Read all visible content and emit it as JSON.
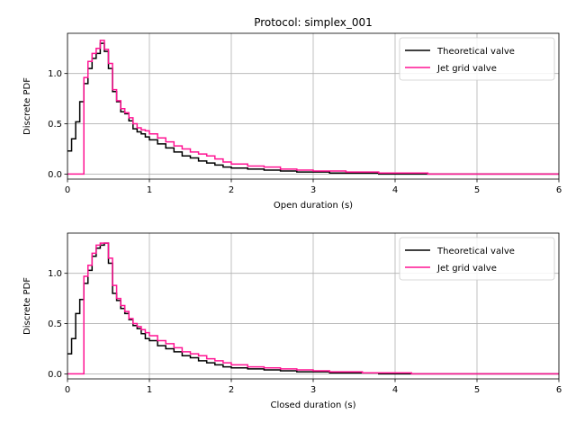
{
  "chart_data": [
    {
      "type": "line",
      "title": "Protocol: simplex_001",
      "xlabel": "Open duration (s)",
      "ylabel": "Discrete PDF",
      "xlim": [
        0,
        6
      ],
      "ylim": [
        -0.05,
        1.4
      ],
      "xticks": [
        0,
        1,
        2,
        3,
        4,
        5,
        6
      ],
      "yticks": [
        0.0,
        0.5,
        1.0
      ],
      "xtick_labels": [
        "0",
        "1",
        "2",
        "3",
        "4",
        "5",
        "6"
      ],
      "ytick_labels": [
        "0.0",
        "0.5",
        "1.0"
      ],
      "grid": true,
      "legend": "top-right",
      "x": [
        0,
        0.05,
        0.1,
        0.15,
        0.2,
        0.25,
        0.3,
        0.35,
        0.4,
        0.45,
        0.5,
        0.55,
        0.6,
        0.65,
        0.7,
        0.75,
        0.8,
        0.85,
        0.9,
        0.95,
        1.0,
        1.1,
        1.2,
        1.3,
        1.4,
        1.5,
        1.6,
        1.7,
        1.8,
        1.9,
        2.0,
        2.2,
        2.4,
        2.6,
        2.8,
        3.0,
        3.2,
        3.4,
        3.6,
        3.8,
        4.0,
        4.2,
        4.4,
        4.6,
        6.0
      ],
      "series": [
        {
          "name": "Theoretical valve",
          "color": "#000000",
          "values": [
            0.23,
            0.35,
            0.52,
            0.72,
            0.9,
            1.05,
            1.15,
            1.2,
            1.3,
            1.22,
            1.05,
            0.82,
            0.72,
            0.62,
            0.6,
            0.53,
            0.45,
            0.42,
            0.4,
            0.37,
            0.34,
            0.3,
            0.26,
            0.22,
            0.18,
            0.16,
            0.13,
            0.11,
            0.09,
            0.07,
            0.06,
            0.05,
            0.04,
            0.03,
            0.02,
            0.02,
            0.01,
            0.01,
            0.01,
            0.0,
            0.0,
            0.0,
            0.0,
            0.0,
            0.0
          ]
        },
        {
          "name": "Jet grid valve",
          "color": "#ff1493",
          "values": [
            0.0,
            0.0,
            0.0,
            0.0,
            0.96,
            1.12,
            1.2,
            1.25,
            1.33,
            1.24,
            1.1,
            0.84,
            0.73,
            0.65,
            0.61,
            0.56,
            0.5,
            0.46,
            0.44,
            0.43,
            0.4,
            0.36,
            0.32,
            0.28,
            0.25,
            0.22,
            0.2,
            0.18,
            0.15,
            0.12,
            0.1,
            0.08,
            0.07,
            0.05,
            0.04,
            0.03,
            0.03,
            0.02,
            0.02,
            0.01,
            0.01,
            0.01,
            0.0,
            0.0,
            0.0
          ]
        }
      ]
    },
    {
      "type": "line",
      "title": "",
      "xlabel": "Closed duration (s)",
      "ylabel": "Discrete PDF",
      "xlim": [
        0,
        6
      ],
      "ylim": [
        -0.05,
        1.4
      ],
      "xticks": [
        0,
        1,
        2,
        3,
        4,
        5,
        6
      ],
      "yticks": [
        0.0,
        0.5,
        1.0
      ],
      "xtick_labels": [
        "0",
        "1",
        "2",
        "3",
        "4",
        "5",
        "6"
      ],
      "ytick_labels": [
        "0.0",
        "0.5",
        "1.0"
      ],
      "grid": true,
      "legend": "top-right",
      "x": [
        0,
        0.05,
        0.1,
        0.15,
        0.2,
        0.25,
        0.3,
        0.35,
        0.4,
        0.45,
        0.5,
        0.55,
        0.6,
        0.65,
        0.7,
        0.75,
        0.8,
        0.85,
        0.9,
        0.95,
        1.0,
        1.1,
        1.2,
        1.3,
        1.4,
        1.5,
        1.6,
        1.7,
        1.8,
        1.9,
        2.0,
        2.2,
        2.4,
        2.6,
        2.8,
        3.0,
        3.2,
        3.4,
        3.6,
        3.8,
        4.0,
        4.2,
        4.4,
        4.6,
        6.0
      ],
      "series": [
        {
          "name": "Theoretical valve",
          "color": "#000000",
          "values": [
            0.2,
            0.35,
            0.6,
            0.74,
            0.9,
            1.03,
            1.17,
            1.25,
            1.28,
            1.3,
            1.1,
            0.8,
            0.73,
            0.65,
            0.6,
            0.54,
            0.48,
            0.45,
            0.4,
            0.35,
            0.33,
            0.28,
            0.25,
            0.22,
            0.18,
            0.16,
            0.13,
            0.11,
            0.09,
            0.07,
            0.06,
            0.05,
            0.04,
            0.03,
            0.02,
            0.02,
            0.01,
            0.01,
            0.01,
            0.0,
            0.0,
            0.0,
            0.0,
            0.0,
            0.0
          ]
        },
        {
          "name": "Jet grid valve",
          "color": "#ff1493",
          "values": [
            0.0,
            0.0,
            0.0,
            0.0,
            0.97,
            1.08,
            1.2,
            1.28,
            1.3,
            1.3,
            1.15,
            0.88,
            0.75,
            0.68,
            0.62,
            0.55,
            0.5,
            0.47,
            0.44,
            0.41,
            0.38,
            0.33,
            0.3,
            0.26,
            0.22,
            0.2,
            0.18,
            0.15,
            0.13,
            0.11,
            0.09,
            0.07,
            0.06,
            0.05,
            0.04,
            0.03,
            0.02,
            0.02,
            0.01,
            0.01,
            0.01,
            0.0,
            0.0,
            0.0,
            0.0
          ]
        }
      ]
    }
  ]
}
